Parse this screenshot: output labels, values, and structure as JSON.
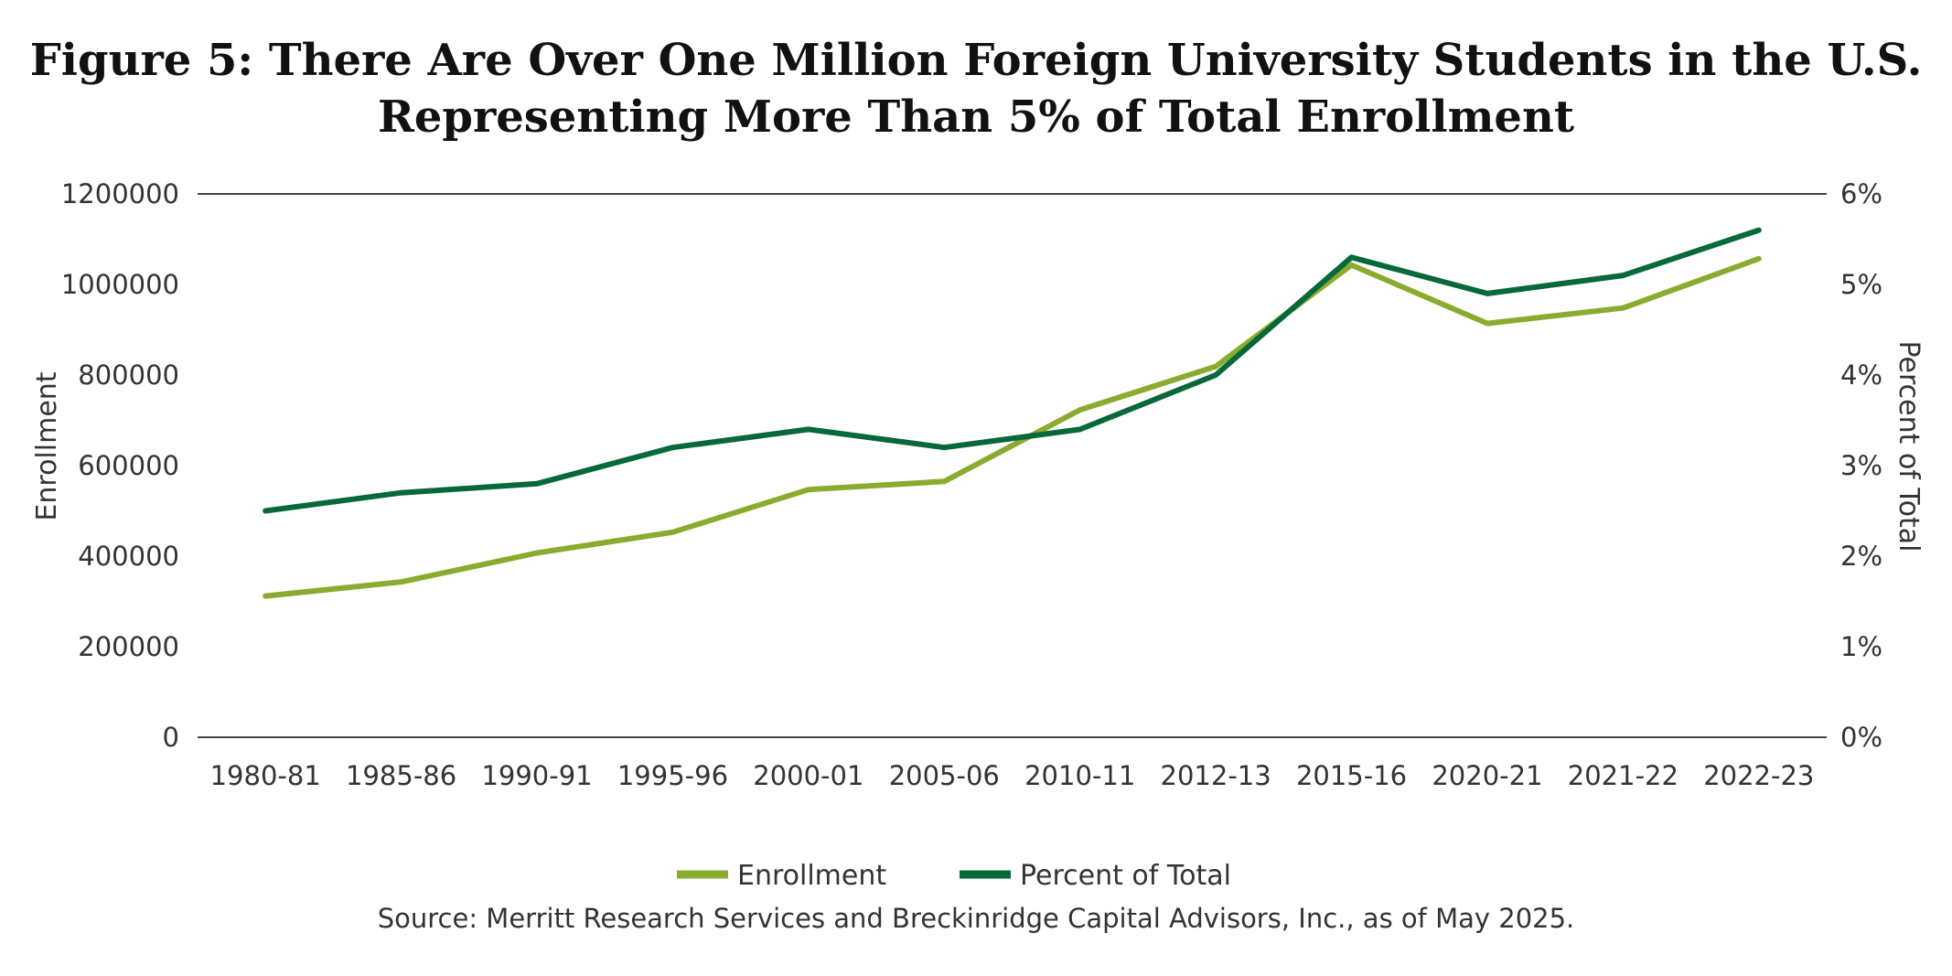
{
  "chart_data": {
    "type": "line",
    "title_lines": [
      "Figure 5: There Are Over One Million Foreign University Students in the U.S.",
      "Representing More Than 5% of Total Enrollment"
    ],
    "categories": [
      "1980-81",
      "1985-86",
      "1990-91",
      "1995-96",
      "2000-01",
      "2005-06",
      "2010-11",
      "2012-13",
      "2015-16",
      "2020-21",
      "2021-22",
      "2022-23"
    ],
    "series": [
      {
        "name": "Enrollment",
        "axis": "left",
        "color": "#8aab2f",
        "values": [
          312000,
          343000,
          407000,
          453000,
          547000,
          565000,
          723000,
          819000,
          1043000,
          914000,
          948000,
          1057000
        ]
      },
      {
        "name": "Percent of Total",
        "axis": "right",
        "color": "#07683a",
        "values": [
          2.5,
          2.7,
          2.8,
          3.2,
          3.4,
          3.2,
          3.4,
          4.0,
          5.3,
          4.9,
          5.1,
          5.6
        ]
      }
    ],
    "ylabel_left": "Enrollment",
    "ylabel_right": "Percent of Total",
    "ylim_left": [
      0,
      1200000
    ],
    "ylim_right": [
      0,
      6
    ],
    "yticks_left": [
      "0",
      "200000",
      "400000",
      "600000",
      "800000",
      "1000000",
      "1200000"
    ],
    "yticks_left_values": [
      0,
      200000,
      400000,
      600000,
      800000,
      1000000,
      1200000
    ],
    "yticks_right": [
      "0%",
      "1%",
      "2%",
      "3%",
      "4%",
      "5%",
      "6%"
    ],
    "yticks_right_values": [
      0,
      1,
      2,
      3,
      4,
      5,
      6
    ],
    "legend_position": "bottom-center",
    "source": "Source: Merritt Research Services and Breckinridge Capital Advisors, Inc., as of May 2025.",
    "axis_color": "#444444"
  }
}
